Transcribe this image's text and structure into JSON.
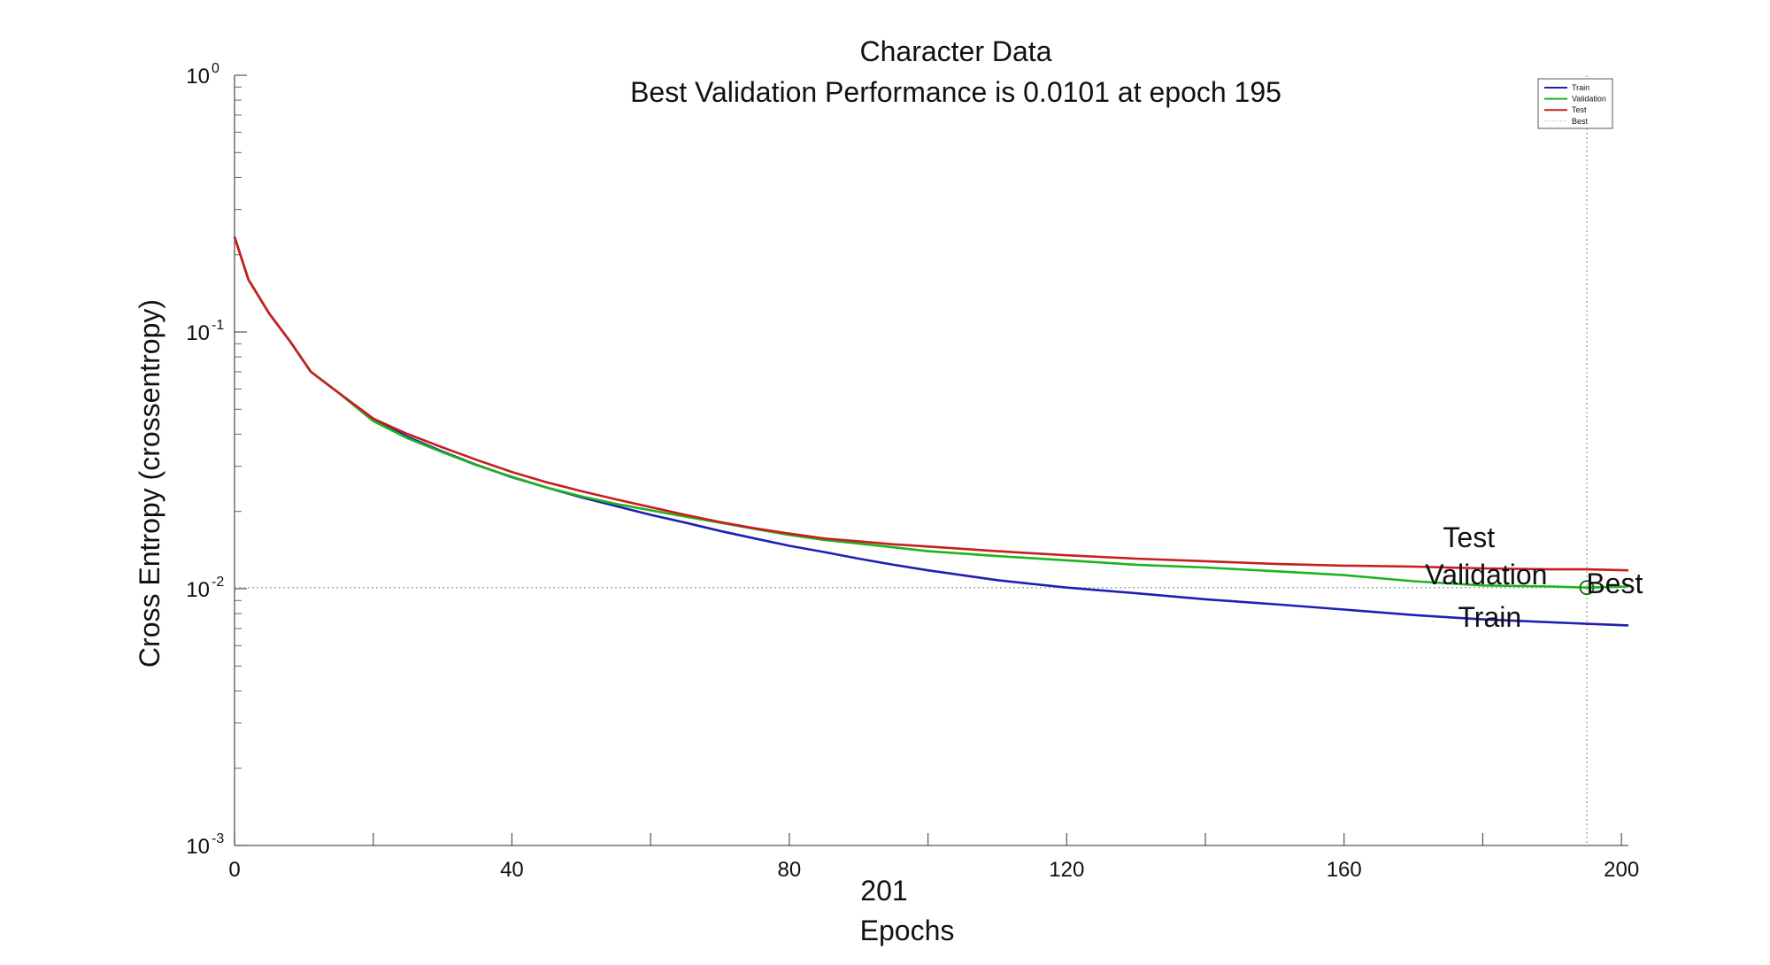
{
  "chart_data": {
    "type": "line",
    "title": "Character Data",
    "subtitle": "Best Validation Performance is 0.0101 at epoch 195",
    "xlabel": "Epochs",
    "xlabel_extra": "201",
    "ylabel": "Cross Entropy (crossentropy)",
    "xlim": [
      0,
      201
    ],
    "ylim": [
      0.001,
      1
    ],
    "yscale": "log",
    "grid": false,
    "legend_position": "top-right",
    "x_ticks": [
      {
        "value": 0,
        "label": "0"
      },
      {
        "value": 40,
        "label": "40"
      },
      {
        "value": 80,
        "label": "80"
      },
      {
        "value": 120,
        "label": "120"
      },
      {
        "value": 160,
        "label": "160"
      },
      {
        "value": 200,
        "label": "200"
      }
    ],
    "y_ticks": [
      {
        "value": 1,
        "base": "10",
        "exp": "0"
      },
      {
        "value": 0.1,
        "base": "10",
        "exp": "-1"
      },
      {
        "value": 0.01,
        "base": "10",
        "exp": "-2"
      },
      {
        "value": 0.001,
        "base": "10",
        "exp": "-3"
      }
    ],
    "x": [
      0,
      2,
      5,
      8,
      11,
      15,
      20,
      25,
      30,
      35,
      40,
      45,
      50,
      55,
      60,
      65,
      70,
      75,
      80,
      85,
      90,
      95,
      100,
      110,
      120,
      130,
      140,
      150,
      160,
      170,
      180,
      190,
      195,
      201
    ],
    "series": [
      {
        "name": "Train",
        "color": "#1f1fb4",
        "values": [
          0.235,
          0.16,
          0.118,
          0.092,
          0.07,
          0.058,
          0.046,
          0.039,
          0.0342,
          0.0303,
          0.0272,
          0.0248,
          0.0227,
          0.021,
          0.0194,
          0.0181,
          0.0168,
          0.0157,
          0.0147,
          0.0139,
          0.0131,
          0.0124,
          0.0118,
          0.0108,
          0.0101,
          0.0096,
          0.0091,
          0.0087,
          0.0083,
          0.0079,
          0.0076,
          0.0074,
          0.0073,
          0.0072
        ]
      },
      {
        "name": "Validation",
        "color": "#1db41d",
        "values": [
          0.235,
          0.16,
          0.118,
          0.092,
          0.07,
          0.058,
          0.045,
          0.0385,
          0.034,
          0.0302,
          0.0273,
          0.0248,
          0.0229,
          0.0214,
          0.0202,
          0.0191,
          0.0181,
          0.0171,
          0.0162,
          0.0155,
          0.015,
          0.0145,
          0.014,
          0.0134,
          0.0129,
          0.0124,
          0.0121,
          0.0117,
          0.0113,
          0.0107,
          0.0103,
          0.0102,
          0.0101,
          0.0102
        ]
      },
      {
        "name": "Test",
        "color": "#c81e1e",
        "values": [
          0.235,
          0.16,
          0.118,
          0.092,
          0.07,
          0.058,
          0.046,
          0.04,
          0.0355,
          0.0317,
          0.0285,
          0.026,
          0.024,
          0.0223,
          0.0208,
          0.0194,
          0.0182,
          0.0172,
          0.0164,
          0.0157,
          0.0153,
          0.0149,
          0.0146,
          0.014,
          0.0135,
          0.0131,
          0.0128,
          0.0125,
          0.0123,
          0.0122,
          0.012,
          0.0119,
          0.0119,
          0.0118
        ]
      }
    ],
    "best": {
      "label": "Best",
      "epoch": 195,
      "value": 0.0101,
      "color": "#1a7a1a",
      "line_color": "#9a9a9a"
    },
    "legend": [
      {
        "label": "Train",
        "color": "#1f1fb4",
        "style": "solid"
      },
      {
        "label": "Validation",
        "color": "#1db41d",
        "style": "solid"
      },
      {
        "label": "Test",
        "color": "#c81e1e",
        "style": "solid"
      },
      {
        "label": "Best",
        "color": "#9a9a9a",
        "style": "dotted"
      }
    ],
    "annotations": [
      {
        "text": "Test",
        "x": 178,
        "y": 0.0145
      },
      {
        "text": "Validation",
        "x": 180.5,
        "y": 0.0104
      },
      {
        "text": "Best",
        "x": 199,
        "y": 0.0096
      },
      {
        "text": "Train",
        "x": 181,
        "y": 0.0071
      }
    ]
  }
}
